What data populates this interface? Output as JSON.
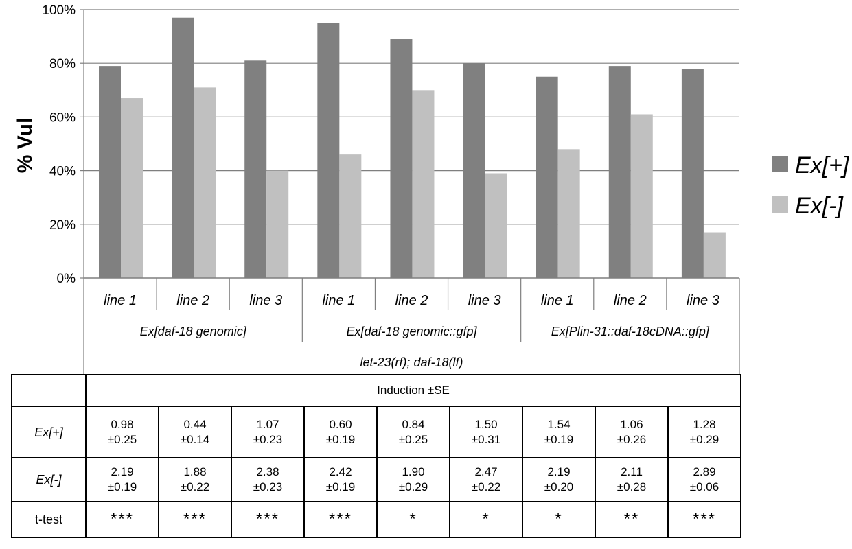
{
  "chart_data": {
    "type": "bar",
    "ylabel": "% Vul",
    "ylim": [
      0,
      100
    ],
    "yticks": [
      "0%",
      "20%",
      "40%",
      "60%",
      "80%",
      "100%"
    ],
    "grid": true,
    "legend_position": "right",
    "categories": [
      "line 1",
      "line 2",
      "line 3",
      "line 1",
      "line 2",
      "line 3",
      "line 1",
      "line 2",
      "line 3"
    ],
    "groups": [
      {
        "label": "Ex[daf-18 genomic]",
        "span": 3
      },
      {
        "label": "Ex[daf-18 genomic::gfp]",
        "span": 3
      },
      {
        "label": "Ex[Plin-31::daf-18cDNA::gfp]",
        "span": 3
      }
    ],
    "supergroup": "let-23(rf); daf-18(lf)",
    "series": [
      {
        "name": "Ex[+]",
        "color": "#808080",
        "values": [
          79,
          97,
          81,
          95,
          89,
          80,
          75,
          79,
          78
        ]
      },
      {
        "name": "Ex[-]",
        "color": "#c0c0c0",
        "values": [
          67,
          71,
          40,
          46,
          70,
          39,
          48,
          61,
          17
        ]
      }
    ]
  },
  "table": {
    "header": "Induction ±SE",
    "rows": [
      {
        "label": "Ex[+]",
        "italic": true,
        "cells": [
          [
            "0.98",
            "±0.25"
          ],
          [
            "0.44",
            "±0.14"
          ],
          [
            "1.07",
            "±0.23"
          ],
          [
            "0.60",
            "±0.19"
          ],
          [
            "0.84",
            "±0.25"
          ],
          [
            "1.50",
            "±0.31"
          ],
          [
            "1.54",
            "±0.19"
          ],
          [
            "1.06",
            "±0.26"
          ],
          [
            "1.28",
            "±0.29"
          ]
        ]
      },
      {
        "label": "Ex[-]",
        "italic": true,
        "cells": [
          [
            "2.19",
            "±0.19"
          ],
          [
            "1.88",
            "±0.22"
          ],
          [
            "2.38",
            "±0.23"
          ],
          [
            "2.42",
            "±0.19"
          ],
          [
            "1.90",
            "±0.29"
          ],
          [
            "2.47",
            "±0.22"
          ],
          [
            "2.19",
            "±0.20"
          ],
          [
            "2.11",
            "±0.28"
          ],
          [
            "2.89",
            "±0.06"
          ]
        ]
      },
      {
        "label": "t-test",
        "italic": false,
        "stars": true,
        "cells": [
          [
            "***"
          ],
          [
            "***"
          ],
          [
            "***"
          ],
          [
            "***"
          ],
          [
            "*"
          ],
          [
            "*"
          ],
          [
            "*"
          ],
          [
            "**"
          ],
          [
            "***"
          ]
        ]
      }
    ]
  }
}
